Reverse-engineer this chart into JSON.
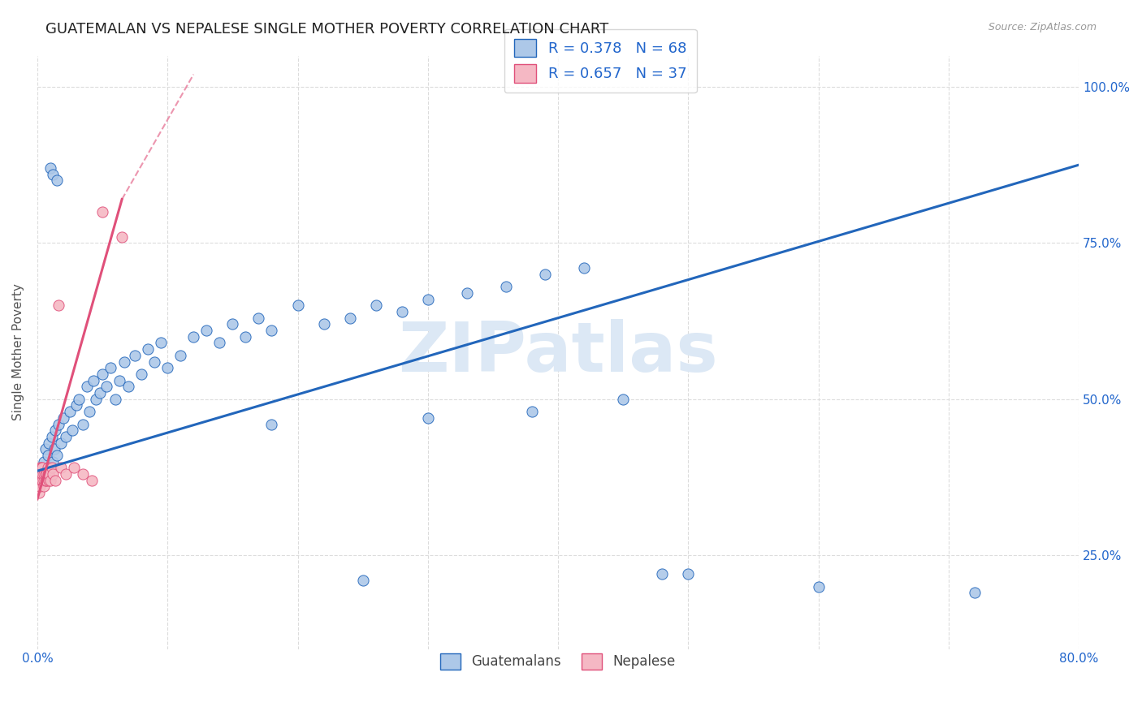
{
  "title": "GUATEMALAN VS NEPALESE SINGLE MOTHER POVERTY CORRELATION CHART",
  "source": "Source: ZipAtlas.com",
  "ylabel": "Single Mother Poverty",
  "legend_entry1": "R = 0.378   N = 68",
  "legend_entry2": "R = 0.657   N = 37",
  "legend_label1": "Guatemalans",
  "legend_label2": "Nepalese",
  "guatemalan_color": "#adc8e8",
  "nepalese_color": "#f5b8c4",
  "trendline_guatemalan_color": "#2266bb",
  "trendline_nepalese_color": "#e0507a",
  "watermark": "ZIPatlas",
  "watermark_color": "#dce8f5",
  "background_color": "#ffffff",
  "grid_color": "#dcdcdc",
  "title_color": "#222222",
  "axis_label_color": "#2266cc",
  "guatemalan_x": [
    0.005,
    0.006,
    0.007,
    0.008,
    0.009,
    0.01,
    0.011,
    0.012,
    0.013,
    0.014,
    0.015,
    0.016,
    0.018,
    0.02,
    0.022,
    0.025,
    0.027,
    0.03,
    0.032,
    0.035,
    0.038,
    0.04,
    0.043,
    0.045,
    0.048,
    0.05,
    0.053,
    0.056,
    0.06,
    0.063,
    0.067,
    0.07,
    0.075,
    0.08,
    0.085,
    0.09,
    0.095,
    0.1,
    0.11,
    0.12,
    0.13,
    0.14,
    0.15,
    0.16,
    0.17,
    0.18,
    0.2,
    0.22,
    0.24,
    0.26,
    0.28,
    0.3,
    0.33,
    0.36,
    0.39,
    0.42,
    0.01,
    0.012,
    0.015,
    0.18,
    0.3,
    0.38,
    0.45,
    0.48,
    0.25,
    0.5,
    0.6,
    0.72
  ],
  "guatemalan_y": [
    0.4,
    0.42,
    0.38,
    0.41,
    0.43,
    0.39,
    0.44,
    0.4,
    0.42,
    0.45,
    0.41,
    0.46,
    0.43,
    0.47,
    0.44,
    0.48,
    0.45,
    0.49,
    0.5,
    0.46,
    0.52,
    0.48,
    0.53,
    0.5,
    0.51,
    0.54,
    0.52,
    0.55,
    0.5,
    0.53,
    0.56,
    0.52,
    0.57,
    0.54,
    0.58,
    0.56,
    0.59,
    0.55,
    0.57,
    0.6,
    0.61,
    0.59,
    0.62,
    0.6,
    0.63,
    0.61,
    0.65,
    0.62,
    0.63,
    0.65,
    0.64,
    0.66,
    0.67,
    0.68,
    0.7,
    0.71,
    0.87,
    0.86,
    0.85,
    0.46,
    0.47,
    0.48,
    0.5,
    0.22,
    0.21,
    0.22,
    0.2,
    0.19
  ],
  "nepalese_x": [
    0.001,
    0.001,
    0.001,
    0.002,
    0.002,
    0.002,
    0.002,
    0.003,
    0.003,
    0.003,
    0.003,
    0.004,
    0.004,
    0.004,
    0.005,
    0.005,
    0.005,
    0.006,
    0.006,
    0.007,
    0.007,
    0.008,
    0.008,
    0.009,
    0.009,
    0.01,
    0.011,
    0.012,
    0.014,
    0.016,
    0.018,
    0.022,
    0.028,
    0.035,
    0.042,
    0.05,
    0.065
  ],
  "nepalese_y": [
    0.38,
    0.36,
    0.35,
    0.39,
    0.37,
    0.36,
    0.38,
    0.38,
    0.37,
    0.39,
    0.38,
    0.37,
    0.38,
    0.39,
    0.37,
    0.38,
    0.36,
    0.38,
    0.37,
    0.38,
    0.37,
    0.38,
    0.39,
    0.37,
    0.38,
    0.37,
    0.39,
    0.38,
    0.37,
    0.65,
    0.39,
    0.38,
    0.39,
    0.38,
    0.37,
    0.8,
    0.76
  ],
  "xlim": [
    0.0,
    0.8
  ],
  "ylim": [
    0.1,
    1.05
  ],
  "trendline_guat_x0": 0.0,
  "trendline_guat_y0": 0.385,
  "trendline_guat_x1": 0.8,
  "trendline_guat_y1": 0.875,
  "trendline_nep_x0": 0.0,
  "trendline_nep_y0": 0.34,
  "trendline_nep_x1": 0.065,
  "trendline_nep_y1": 0.82,
  "trendline_nep_dash_x0": 0.065,
  "trendline_nep_dash_y0": 0.82,
  "trendline_nep_dash_x1": 0.12,
  "trendline_nep_dash_y1": 1.02
}
